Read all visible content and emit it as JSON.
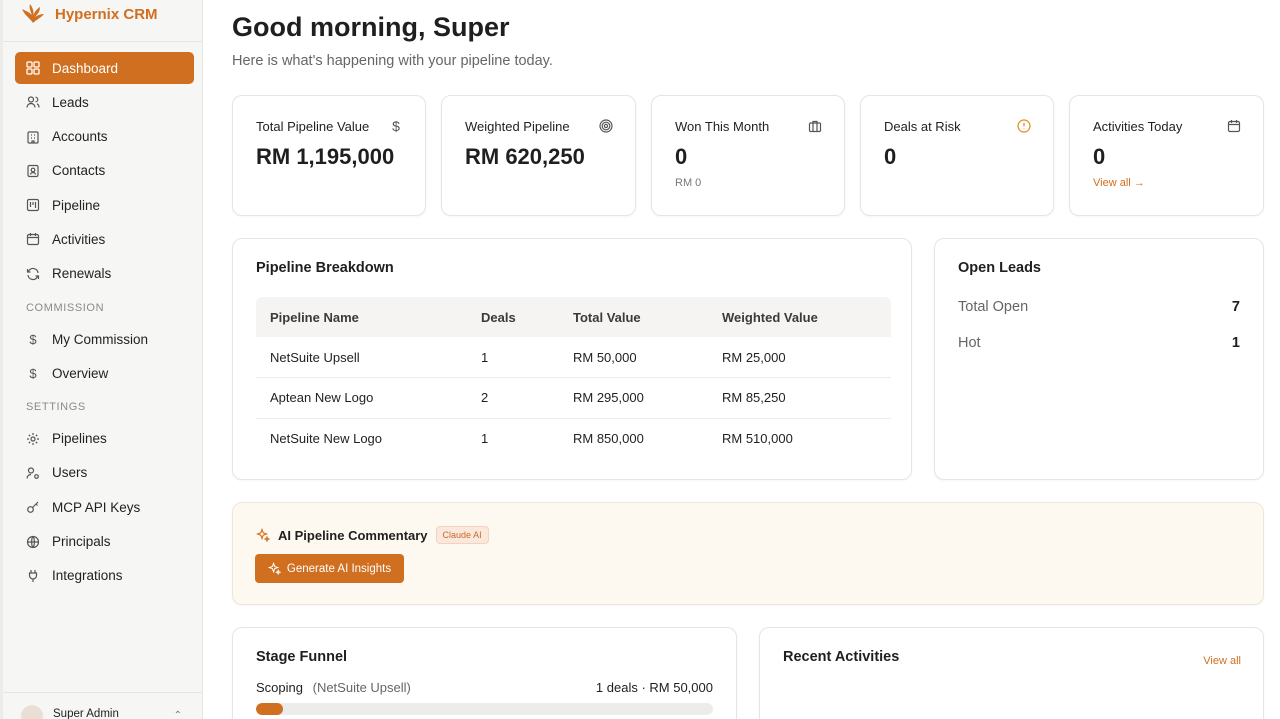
{
  "app": {
    "name": "Hypernix CRM"
  },
  "sidebar": {
    "items": [
      {
        "label": "Dashboard",
        "icon": "dashboard-icon",
        "active": true
      },
      {
        "label": "Leads",
        "icon": "users-icon"
      },
      {
        "label": "Accounts",
        "icon": "building-icon"
      },
      {
        "label": "Contacts",
        "icon": "contact-icon"
      },
      {
        "label": "Pipeline",
        "icon": "kanban-icon"
      },
      {
        "label": "Activities",
        "icon": "calendar-icon"
      },
      {
        "label": "Renewals",
        "icon": "refresh-icon"
      }
    ],
    "commission_section": "COMMISSION",
    "commission_items": [
      {
        "label": "My Commission",
        "icon": "dollar-icon"
      },
      {
        "label": "Overview",
        "icon": "dollar-icon"
      }
    ],
    "settings_section": "SETTINGS",
    "settings_items": [
      {
        "label": "Pipelines",
        "icon": "gear-icon"
      },
      {
        "label": "Users",
        "icon": "user-key-icon"
      },
      {
        "label": "MCP API Keys",
        "icon": "key-icon"
      },
      {
        "label": "Principals",
        "icon": "globe-icon"
      },
      {
        "label": "Integrations",
        "icon": "plug-icon"
      }
    ],
    "footer_user": "Super Admin"
  },
  "header": {
    "greeting": "Good morning, Super",
    "subtitle": "Here is what's happening with your pipeline today."
  },
  "stats": [
    {
      "label": "Total Pipeline Value",
      "value": "RM 1,195,000",
      "icon": "dollar-icon"
    },
    {
      "label": "Weighted Pipeline",
      "value": "RM 620,250",
      "icon": "target-icon"
    },
    {
      "label": "Won This Month",
      "value": "0",
      "sub": "RM 0",
      "icon": "briefcase-icon"
    },
    {
      "label": "Deals at Risk",
      "value": "0",
      "icon": "alert-icon"
    },
    {
      "label": "Activities Today",
      "value": "0",
      "link": "View all →",
      "icon": "calendar-icon"
    }
  ],
  "pipeline_breakdown": {
    "title": "Pipeline Breakdown",
    "columns": [
      "Pipeline Name",
      "Deals",
      "Total Value",
      "Weighted Value"
    ],
    "rows": [
      [
        "NetSuite Upsell",
        "1",
        "RM 50,000",
        "RM 25,000"
      ],
      [
        "Aptean New Logo",
        "2",
        "RM 295,000",
        "RM 85,250"
      ],
      [
        "NetSuite New Logo",
        "1",
        "RM 850,000",
        "RM 510,000"
      ]
    ]
  },
  "open_leads": {
    "title": "Open Leads",
    "rows": [
      {
        "label": "Total Open",
        "value": "7"
      },
      {
        "label": "Hot",
        "value": "1"
      }
    ]
  },
  "ai": {
    "title": "AI Pipeline Commentary",
    "badge": "Claude AI",
    "button": "Generate AI Insights"
  },
  "funnel": {
    "title": "Stage Funnel",
    "stage": "Scoping",
    "pipeline": "(NetSuite Upsell)",
    "summary": "1 deals · RM 50,000",
    "fill_fraction": 0.06
  },
  "recent": {
    "title": "Recent Activities",
    "link": "View all"
  },
  "colors": {
    "accent": "#d06f1f"
  }
}
